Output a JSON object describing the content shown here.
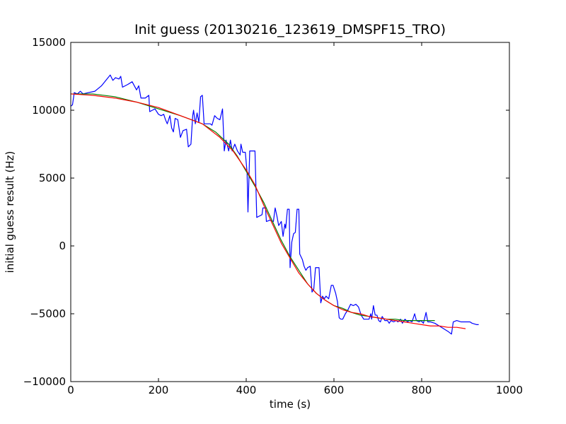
{
  "chart_data": {
    "type": "line",
    "title": "Init guess (20130216_123619_DMSPF15_TRO)",
    "xlabel": "time (s)",
    "ylabel": "initial guess result (Hz)",
    "xlim": [
      0,
      1000
    ],
    "ylim": [
      -10000,
      15000
    ],
    "x_ticks": [
      0,
      200,
      400,
      600,
      800,
      1000
    ],
    "x_tick_labels": [
      "0",
      "200",
      "400",
      "600",
      "800",
      "1000"
    ],
    "y_ticks": [
      -10000,
      -5000,
      0,
      5000,
      10000,
      15000
    ],
    "y_tick_labels": [
      "−10000",
      "−5000",
      "0",
      "5000",
      "10000",
      "15000"
    ],
    "grid": false,
    "series": [
      {
        "color": "#0000ff",
        "points": [
          [
            0,
            10300
          ],
          [
            4,
            10400
          ],
          [
            8,
            11300
          ],
          [
            15,
            11200
          ],
          [
            22,
            11400
          ],
          [
            28,
            11200
          ],
          [
            40,
            11300
          ],
          [
            55,
            11400
          ],
          [
            70,
            11800
          ],
          [
            90,
            12600
          ],
          [
            96,
            12200
          ],
          [
            102,
            12400
          ],
          [
            110,
            12300
          ],
          [
            114,
            12500
          ],
          [
            118,
            11700
          ],
          [
            130,
            11900
          ],
          [
            140,
            12100
          ],
          [
            150,
            11500
          ],
          [
            155,
            11800
          ],
          [
            160,
            10900
          ],
          [
            170,
            10900
          ],
          [
            178,
            11100
          ],
          [
            180,
            9900
          ],
          [
            186,
            10000
          ],
          [
            192,
            10100
          ],
          [
            200,
            9700
          ],
          [
            206,
            9600
          ],
          [
            212,
            9700
          ],
          [
            216,
            9300
          ],
          [
            220,
            9000
          ],
          [
            226,
            9600
          ],
          [
            230,
            8700
          ],
          [
            234,
            8400
          ],
          [
            238,
            9400
          ],
          [
            244,
            9300
          ],
          [
            250,
            8000
          ],
          [
            256,
            8500
          ],
          [
            264,
            8600
          ],
          [
            268,
            7300
          ],
          [
            274,
            7500
          ],
          [
            278,
            9600
          ],
          [
            280,
            10000
          ],
          [
            284,
            9000
          ],
          [
            288,
            9800
          ],
          [
            292,
            9100
          ],
          [
            296,
            11000
          ],
          [
            300,
            11100
          ],
          [
            304,
            9000
          ],
          [
            310,
            9000
          ],
          [
            318,
            9000
          ],
          [
            322,
            8900
          ],
          [
            328,
            9600
          ],
          [
            334,
            9400
          ],
          [
            340,
            9300
          ],
          [
            346,
            10100
          ],
          [
            350,
            7000
          ],
          [
            354,
            7800
          ],
          [
            360,
            7000
          ],
          [
            364,
            7800
          ],
          [
            368,
            7000
          ],
          [
            374,
            7500
          ],
          [
            380,
            7000
          ],
          [
            386,
            6700
          ],
          [
            388,
            7500
          ],
          [
            392,
            6900
          ],
          [
            398,
            6900
          ],
          [
            402,
            5400
          ],
          [
            404,
            2500
          ],
          [
            408,
            7000
          ],
          [
            414,
            7000
          ],
          [
            420,
            7000
          ],
          [
            424,
            2100
          ],
          [
            430,
            2200
          ],
          [
            436,
            2300
          ],
          [
            438,
            2800
          ],
          [
            444,
            2800
          ],
          [
            446,
            1800
          ],
          [
            454,
            1900
          ],
          [
            462,
            1800
          ],
          [
            466,
            2800
          ],
          [
            470,
            2200
          ],
          [
            474,
            1500
          ],
          [
            480,
            1800
          ],
          [
            484,
            700
          ],
          [
            488,
            1600
          ],
          [
            490,
            1300
          ],
          [
            494,
            2700
          ],
          [
            498,
            2700
          ],
          [
            500,
            -1600
          ],
          [
            504,
            300
          ],
          [
            508,
            900
          ],
          [
            512,
            1000
          ],
          [
            516,
            2700
          ],
          [
            520,
            2700
          ],
          [
            522,
            -600
          ],
          [
            528,
            -1000
          ],
          [
            532,
            -1500
          ],
          [
            536,
            -1800
          ],
          [
            540,
            -1600
          ],
          [
            546,
            -1500
          ],
          [
            550,
            -3400
          ],
          [
            554,
            -3200
          ],
          [
            558,
            -1600
          ],
          [
            562,
            -1600
          ],
          [
            566,
            -1600
          ],
          [
            570,
            -4200
          ],
          [
            574,
            -3700
          ],
          [
            578,
            -3900
          ],
          [
            582,
            -3700
          ],
          [
            588,
            -3900
          ],
          [
            594,
            -2900
          ],
          [
            598,
            -2900
          ],
          [
            604,
            -3500
          ],
          [
            608,
            -4100
          ],
          [
            612,
            -5300
          ],
          [
            616,
            -5400
          ],
          [
            620,
            -5400
          ],
          [
            626,
            -5000
          ],
          [
            632,
            -4700
          ],
          [
            638,
            -4300
          ],
          [
            644,
            -4400
          ],
          [
            650,
            -4300
          ],
          [
            656,
            -4500
          ],
          [
            662,
            -5100
          ],
          [
            668,
            -5400
          ],
          [
            674,
            -5400
          ],
          [
            680,
            -5400
          ],
          [
            684,
            -5000
          ],
          [
            686,
            -5400
          ],
          [
            690,
            -4400
          ],
          [
            694,
            -5100
          ],
          [
            698,
            -5100
          ],
          [
            702,
            -5500
          ],
          [
            706,
            -5600
          ],
          [
            710,
            -5200
          ],
          [
            716,
            -5500
          ],
          [
            722,
            -5500
          ],
          [
            726,
            -5700
          ],
          [
            730,
            -5500
          ],
          [
            736,
            -5600
          ],
          [
            742,
            -5500
          ],
          [
            746,
            -5600
          ],
          [
            752,
            -5400
          ],
          [
            756,
            -5700
          ],
          [
            762,
            -5400
          ],
          [
            768,
            -5600
          ],
          [
            772,
            -5500
          ],
          [
            778,
            -5600
          ],
          [
            784,
            -5000
          ],
          [
            788,
            -5500
          ],
          [
            794,
            -5600
          ],
          [
            798,
            -5500
          ],
          [
            804,
            -5700
          ],
          [
            810,
            -4900
          ],
          [
            814,
            -5600
          ],
          [
            820,
            -5600
          ],
          [
            830,
            -5700
          ],
          [
            840,
            -5900
          ],
          [
            850,
            -6100
          ],
          [
            860,
            -6300
          ],
          [
            868,
            -6500
          ],
          [
            872,
            -5600
          ],
          [
            880,
            -5500
          ],
          [
            890,
            -5600
          ],
          [
            900,
            -5600
          ],
          [
            910,
            -5600
          ],
          [
            915,
            -5700
          ],
          [
            925,
            -5800
          ],
          [
            930,
            -5800
          ]
        ]
      },
      {
        "color": "#008000",
        "points": [
          [
            0,
            11200
          ],
          [
            50,
            11200
          ],
          [
            100,
            11000
          ],
          [
            150,
            10600
          ],
          [
            200,
            10100
          ],
          [
            250,
            9600
          ],
          [
            300,
            9000
          ],
          [
            330,
            8400
          ],
          [
            360,
            7500
          ],
          [
            380,
            6600
          ],
          [
            400,
            5500
          ],
          [
            420,
            4400
          ],
          [
            440,
            3200
          ],
          [
            460,
            1800
          ],
          [
            480,
            400
          ],
          [
            500,
            -800
          ],
          [
            520,
            -1800
          ],
          [
            540,
            -2800
          ],
          [
            560,
            -3500
          ],
          [
            580,
            -4000
          ],
          [
            600,
            -4400
          ],
          [
            620,
            -4600
          ],
          [
            640,
            -4900
          ],
          [
            660,
            -5100
          ],
          [
            680,
            -5200
          ],
          [
            700,
            -5300
          ],
          [
            720,
            -5400
          ],
          [
            740,
            -5400
          ],
          [
            760,
            -5500
          ],
          [
            780,
            -5500
          ],
          [
            800,
            -5500
          ],
          [
            830,
            -5500
          ]
        ]
      },
      {
        "color": "#ff0000",
        "points": [
          [
            0,
            11200
          ],
          [
            50,
            11100
          ],
          [
            100,
            10900
          ],
          [
            150,
            10600
          ],
          [
            200,
            10200
          ],
          [
            250,
            9600
          ],
          [
            300,
            9000
          ],
          [
            340,
            8000
          ],
          [
            370,
            7000
          ],
          [
            400,
            5600
          ],
          [
            420,
            4500
          ],
          [
            440,
            3000
          ],
          [
            460,
            1600
          ],
          [
            480,
            200
          ],
          [
            500,
            -900
          ],
          [
            520,
            -2000
          ],
          [
            540,
            -2800
          ],
          [
            560,
            -3500
          ],
          [
            580,
            -4000
          ],
          [
            600,
            -4400
          ],
          [
            620,
            -4700
          ],
          [
            640,
            -4900
          ],
          [
            660,
            -5000
          ],
          [
            680,
            -5200
          ],
          [
            700,
            -5300
          ],
          [
            720,
            -5400
          ],
          [
            740,
            -5500
          ],
          [
            760,
            -5600
          ],
          [
            780,
            -5700
          ],
          [
            800,
            -5800
          ],
          [
            820,
            -5900
          ],
          [
            840,
            -5900
          ],
          [
            860,
            -6000
          ],
          [
            880,
            -6000
          ],
          [
            900,
            -6100
          ]
        ]
      }
    ]
  }
}
